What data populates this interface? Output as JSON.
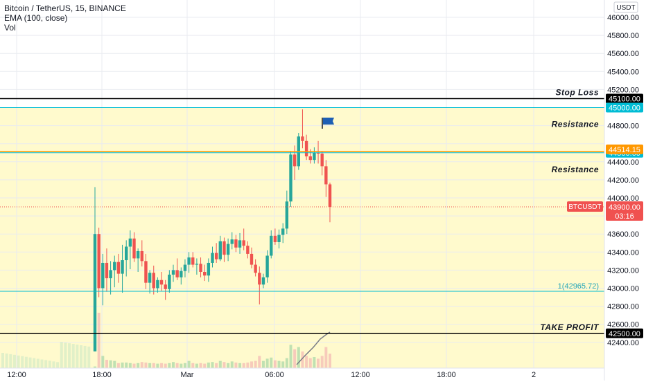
{
  "header": {
    "symbol_line": "Bitcoin / TetherUS, 15, BINANCE",
    "indicator_1": "EMA (100, close)",
    "indicator_2": "Vol",
    "currency": "USDT"
  },
  "colors": {
    "up": "#26a69a",
    "down": "#ef5350",
    "zone_fill": "#fff9c4",
    "black_line": "#000000",
    "teal_line": "#00bcd4",
    "orange_line": "#ff9800",
    "price_badge": "#f0514f",
    "ema": "#787b86"
  },
  "price_lines": [
    {
      "price": 45100,
      "label": "45100.00",
      "note": "Stop Loss",
      "color": "black"
    },
    {
      "price": 45000,
      "label": "45000.00",
      "note": "Resistance",
      "color": "teal"
    },
    {
      "price": 44500,
      "label": "44500.00",
      "note": "Resistance",
      "color": "teal"
    },
    {
      "price": 42500,
      "label": "42500.00",
      "note": "TAKE PROFIT",
      "color": "black"
    }
  ],
  "orange_level": {
    "price": 44514.15,
    "label": "44514.15"
  },
  "last_price": {
    "symbol": "BTCUSDT",
    "price": 43900,
    "label": "43900.00",
    "countdown": "03:16"
  },
  "fib_level": {
    "price": 42965.72,
    "label": "1(42965.72)"
  },
  "chart_data": {
    "type": "candlestick",
    "title": "Bitcoin / TetherUS, 15, BINANCE",
    "y_axis": {
      "ticks": [
        "46000.00",
        "45800.00",
        "45600.00",
        "45400.00",
        "45200.00",
        "44800.00",
        "44400.00",
        "44200.00",
        "44000.00",
        "43600.00",
        "43400.00",
        "43200.00",
        "43000.00",
        "42800.00",
        "42600.00",
        "42400.00"
      ],
      "range": [
        42270,
        46100
      ]
    },
    "x_axis": {
      "ticks": [
        "12:00",
        "18:00",
        "Mar",
        "06:00",
        "12:00",
        "18:00",
        "2"
      ]
    },
    "candles": [
      [
        42300,
        44120,
        42300,
        43600
      ],
      [
        43600,
        43670,
        42900,
        43000
      ],
      [
        43000,
        43380,
        42810,
        43280
      ],
      [
        43280,
        43440,
        42960,
        43110
      ],
      [
        43110,
        43300,
        42930,
        43200
      ],
      [
        43200,
        43360,
        43010,
        43290
      ],
      [
        43290,
        43380,
        43060,
        43160
      ],
      [
        43160,
        43480,
        42950,
        43310
      ],
      [
        43310,
        43530,
        43130,
        43460
      ],
      [
        43460,
        43640,
        43210,
        43550
      ],
      [
        43550,
        43620,
        43290,
        43330
      ],
      [
        43330,
        43440,
        43180,
        43410
      ],
      [
        43410,
        43530,
        43240,
        43300
      ],
      [
        43300,
        43380,
        42990,
        43060
      ],
      [
        43060,
        43200,
        42940,
        43170
      ],
      [
        43170,
        43250,
        42930,
        43000
      ],
      [
        43000,
        43120,
        42950,
        43090
      ],
      [
        43090,
        43180,
        42970,
        43040
      ],
      [
        43040,
        43090,
        42870,
        42990
      ],
      [
        42990,
        43200,
        42950,
        43150
      ],
      [
        43150,
        43260,
        43070,
        43200
      ],
      [
        43200,
        43330,
        43090,
        43120
      ],
      [
        43120,
        43230,
        43040,
        43190
      ],
      [
        43190,
        43320,
        43120,
        43260
      ],
      [
        43260,
        43400,
        43170,
        43340
      ],
      [
        43340,
        43400,
        43230,
        43260
      ],
      [
        43260,
        43330,
        43150,
        43270
      ],
      [
        43270,
        43340,
        43120,
        43180
      ],
      [
        43180,
        43260,
        43080,
        43140
      ],
      [
        43140,
        43330,
        43070,
        43280
      ],
      [
        43280,
        43460,
        43230,
        43390
      ],
      [
        43390,
        43500,
        43280,
        43320
      ],
      [
        43320,
        43580,
        43300,
        43520
      ],
      [
        43520,
        43560,
        43290,
        43370
      ],
      [
        43370,
        43550,
        43300,
        43490
      ],
      [
        43490,
        43620,
        43430,
        43540
      ],
      [
        43540,
        43590,
        43400,
        43450
      ],
      [
        43450,
        43610,
        43380,
        43530
      ],
      [
        43530,
        43660,
        43420,
        43470
      ],
      [
        43470,
        43520,
        43330,
        43380
      ],
      [
        43380,
        43450,
        43220,
        43260
      ],
      [
        43260,
        43320,
        43130,
        43170
      ],
      [
        43170,
        43240,
        42820,
        43040
      ],
      [
        43040,
        43160,
        43000,
        43120
      ],
      [
        43120,
        43420,
        43060,
        43360
      ],
      [
        43360,
        43640,
        43330,
        43580
      ],
      [
        43580,
        43660,
        43480,
        43510
      ],
      [
        43510,
        43650,
        43440,
        43590
      ],
      [
        43590,
        43720,
        43500,
        43660
      ],
      [
        43660,
        44080,
        43600,
        43960
      ],
      [
        43960,
        44510,
        43900,
        44480
      ],
      [
        44480,
        44580,
        44200,
        44350
      ],
      [
        44350,
        44720,
        44310,
        44680
      ],
      [
        44680,
        44980,
        44550,
        44630
      ],
      [
        44630,
        44700,
        44420,
        44460
      ],
      [
        44460,
        44540,
        44380,
        44420
      ],
      [
        44420,
        44560,
        44380,
        44500
      ],
      [
        44500,
        44630,
        44380,
        44490
      ],
      [
        44490,
        44520,
        44250,
        44350
      ],
      [
        44350,
        44420,
        44010,
        44150
      ],
      [
        44150,
        44170,
        43730,
        43900
      ]
    ],
    "volume": [
      0.03,
      1.0,
      0.22,
      0.15,
      0.14,
      0.13,
      0.09,
      0.1,
      0.1,
      0.09,
      0.08,
      0.09,
      0.11,
      0.1,
      0.09,
      0.09,
      0.08,
      0.09,
      0.08,
      0.09,
      0.11,
      0.09,
      0.08,
      0.09,
      0.13,
      0.09,
      0.08,
      0.09,
      0.08,
      0.1,
      0.11,
      0.09,
      0.13,
      0.11,
      0.09,
      0.12,
      0.1,
      0.09,
      0.09,
      0.1,
      0.12,
      0.13,
      0.22,
      0.13,
      0.17,
      0.19,
      0.14,
      0.13,
      0.12,
      0.18,
      0.42,
      0.34,
      0.38,
      0.3,
      0.22,
      0.18,
      0.2,
      0.17,
      0.22,
      0.38,
      0.26
    ],
    "grid": true,
    "legend": "top-left"
  }
}
